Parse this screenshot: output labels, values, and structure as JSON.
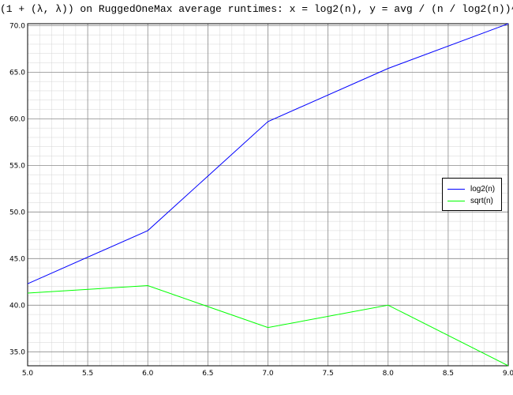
{
  "chart_data": {
    "type": "line",
    "title": "(1 + (λ, λ)) on RuggedOneMax average runtimes: x = log2(n), y = avg / (n / log2(n))^2",
    "xlabel": "",
    "ylabel": "",
    "xlim": [
      5.0,
      9.0
    ],
    "ylim": [
      33.5,
      70.2
    ],
    "x_ticks": [
      "5.0",
      "5.5",
      "6.0",
      "6.5",
      "7.0",
      "7.5",
      "8.0",
      "8.5",
      "9.0"
    ],
    "y_ticks": [
      "35.0",
      "40.0",
      "45.0",
      "50.0",
      "55.0",
      "60.0",
      "65.0",
      "70.0"
    ],
    "x_tick_values": [
      5.0,
      5.5,
      6.0,
      6.5,
      7.0,
      7.5,
      8.0,
      8.5,
      9.0
    ],
    "y_tick_values": [
      35.0,
      40.0,
      45.0,
      50.0,
      55.0,
      60.0,
      65.0,
      70.0
    ],
    "grid": true,
    "legend_position": "right",
    "x": [
      5,
      6,
      7,
      8,
      9
    ],
    "series": [
      {
        "name": "log2(n)",
        "color": "#0000ff",
        "values": [
          42.3,
          48.0,
          59.7,
          65.4,
          70.2
        ]
      },
      {
        "name": "sqrt(n)",
        "color": "#00ff00",
        "values": [
          41.3,
          42.1,
          37.6,
          40.0,
          33.5
        ]
      }
    ]
  }
}
